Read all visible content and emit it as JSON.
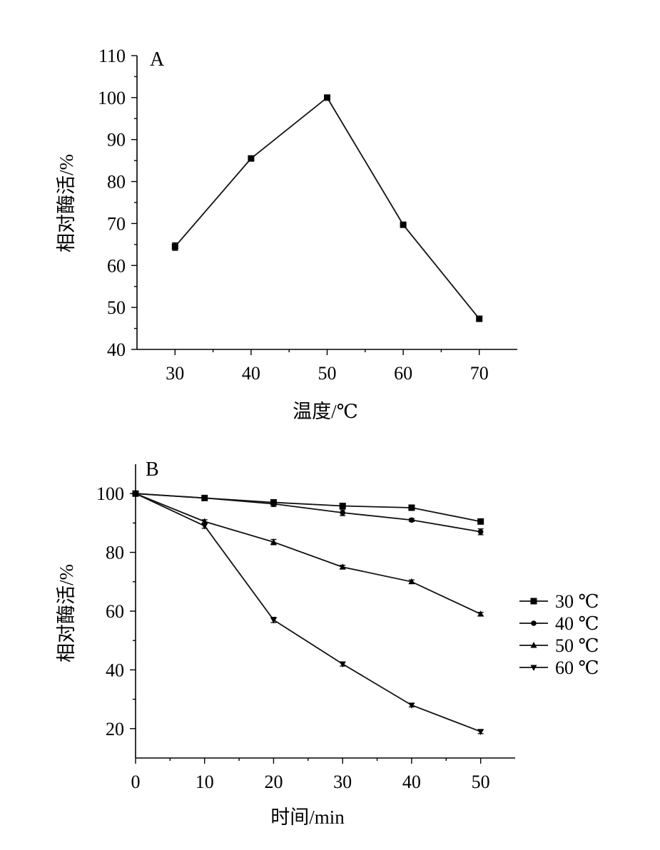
{
  "chart_data": [
    {
      "panel_label": "A",
      "type": "line",
      "xlabel": "温度/℃",
      "ylabel": "相对酶活/%",
      "xlim": [
        25,
        75
      ],
      "ylim": [
        40,
        110
      ],
      "x_ticks": [
        30,
        40,
        50,
        60,
        70
      ],
      "y_ticks": [
        40,
        50,
        60,
        70,
        80,
        90,
        100,
        110
      ],
      "series": [
        {
          "marker": "square",
          "x": [
            30,
            40,
            50,
            60,
            70
          ],
          "y": [
            64.5,
            85.5,
            100,
            69.7,
            47.3
          ],
          "error": [
            0.9,
            0.5,
            0.6,
            0.5,
            0.4
          ]
        }
      ]
    },
    {
      "panel_label": "B",
      "type": "line",
      "xlabel": "时间/min",
      "ylabel": "相对酶活/%",
      "xlim": [
        0,
        55
      ],
      "ylim": [
        10,
        110
      ],
      "x_ticks": [
        0,
        10,
        20,
        30,
        40,
        50
      ],
      "y_ticks": [
        20,
        40,
        60,
        80,
        100
      ],
      "legend_position": "right",
      "series": [
        {
          "name": "30 ℃",
          "marker": "square",
          "x": [
            0,
            10,
            20,
            30,
            40,
            50
          ],
          "y": [
            100,
            98.5,
            97,
            95.8,
            95.2,
            90.5
          ],
          "error": [
            0.5,
            0.5,
            0.9,
            0.9,
            0.6,
            0.7
          ]
        },
        {
          "name": "40 ℃",
          "marker": "circle",
          "x": [
            0,
            10,
            20,
            30,
            40,
            50
          ],
          "y": [
            100,
            98.5,
            96.5,
            93.5,
            91,
            87
          ],
          "error": [
            0.5,
            0.5,
            0.9,
            1.0,
            0.5,
            1.0
          ]
        },
        {
          "name": "50 ℃",
          "marker": "triangle-up",
          "x": [
            0,
            10,
            20,
            30,
            40,
            50
          ],
          "y": [
            100,
            90.5,
            83.5,
            75,
            70,
            59
          ],
          "error": [
            0.5,
            0.6,
            0.9,
            0.6,
            0.6,
            0.6
          ]
        },
        {
          "name": "60 ℃",
          "marker": "triangle-down",
          "x": [
            0,
            10,
            20,
            30,
            40,
            50
          ],
          "y": [
            100,
            89,
            57,
            42,
            28,
            19
          ],
          "error": [
            0.5,
            0.8,
            0.9,
            0.7,
            0.6,
            0.7
          ]
        }
      ]
    }
  ]
}
